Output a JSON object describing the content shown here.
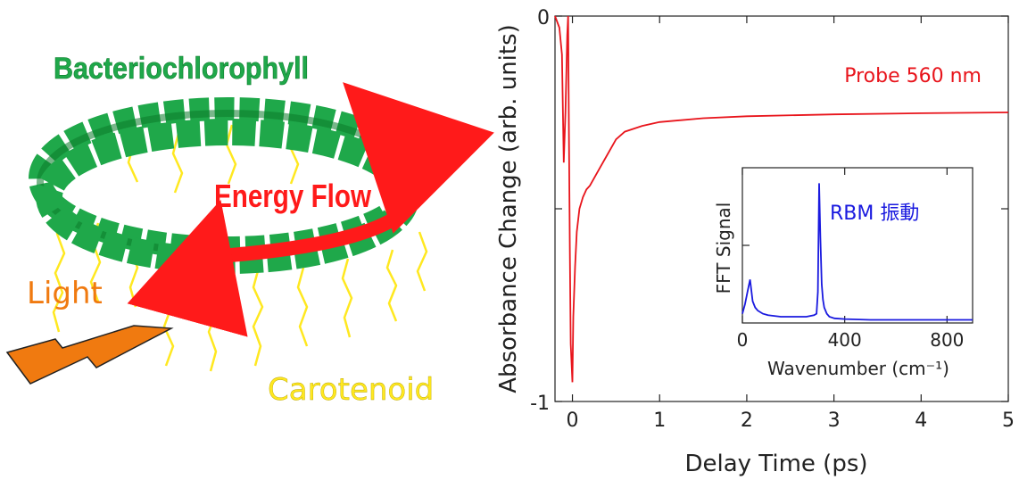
{
  "diagram": {
    "bacteriochlorophyll_label": "Bacteriochlorophyll",
    "energy_flow_label": "Energy Flow",
    "light_label": "Light",
    "carotenoid_label": "Carotenoid",
    "colors": {
      "green": "#1fa84a",
      "red": "#ff1a1a",
      "orange": "#f07a10",
      "yellow": "#ffe820",
      "dark_green": "#0b7a2a"
    }
  },
  "chart_data": [
    {
      "type": "line",
      "xlabel": "Delay Time (ps)",
      "ylabel": "Absorbance Change (arb. units)",
      "xlim": [
        -0.2,
        5
      ],
      "ylim": [
        -1,
        0
      ],
      "xticks": [
        0,
        1,
        2,
        3,
        4,
        5
      ],
      "xtick_labels": [
        "0",
        "1",
        "2",
        "3",
        "4",
        "5"
      ],
      "yticks": [
        -1,
        -0.5,
        0
      ],
      "ytick_labels": [
        "-1",
        "",
        "0"
      ],
      "color": "#e8141b",
      "annotation": "Probe 560 nm",
      "series": [
        {
          "x": [
            -0.2,
            -0.15,
            -0.12,
            -0.1,
            -0.08,
            -0.06,
            -0.05,
            -0.04,
            -0.03,
            -0.02,
            0.0,
            0.01,
            0.03,
            0.05,
            0.08,
            0.12,
            0.16,
            0.2,
            0.3,
            0.4,
            0.5,
            0.6,
            0.8,
            1.0,
            1.5,
            2.0,
            3.0,
            4.0,
            5.0
          ],
          "y": [
            0.0,
            -0.03,
            -0.1,
            -0.38,
            -0.25,
            -0.05,
            0.0,
            -0.3,
            -0.6,
            -0.85,
            -0.95,
            -0.78,
            -0.65,
            -0.56,
            -0.5,
            -0.47,
            -0.45,
            -0.44,
            -0.4,
            -0.36,
            -0.32,
            -0.3,
            -0.285,
            -0.275,
            -0.265,
            -0.26,
            -0.255,
            -0.252,
            -0.25
          ]
        }
      ]
    },
    {
      "type": "line",
      "xlabel": "Wavenumber (cm⁻¹)",
      "ylabel": "FFT Signal",
      "xlim": [
        0,
        900
      ],
      "ylim": [
        0,
        1
      ],
      "xticks": [
        0,
        400,
        800
      ],
      "xtick_labels": [
        "0",
        "400",
        "800"
      ],
      "color": "#1a1adf",
      "annotation": "RBM 振動",
      "series": [
        {
          "x": [
            0,
            10,
            20,
            30,
            40,
            50,
            60,
            80,
            100,
            150,
            200,
            250,
            280,
            290,
            295,
            300,
            305,
            310,
            315,
            320,
            330,
            340,
            360,
            400,
            500,
            600,
            700,
            800,
            900
          ],
          "y": [
            0.06,
            0.12,
            0.2,
            0.28,
            0.14,
            0.1,
            0.08,
            0.06,
            0.05,
            0.04,
            0.04,
            0.04,
            0.05,
            0.06,
            0.2,
            0.9,
            0.55,
            0.25,
            0.15,
            0.1,
            0.06,
            0.04,
            0.03,
            0.025,
            0.02,
            0.02,
            0.02,
            0.02,
            0.02
          ]
        }
      ]
    }
  ]
}
